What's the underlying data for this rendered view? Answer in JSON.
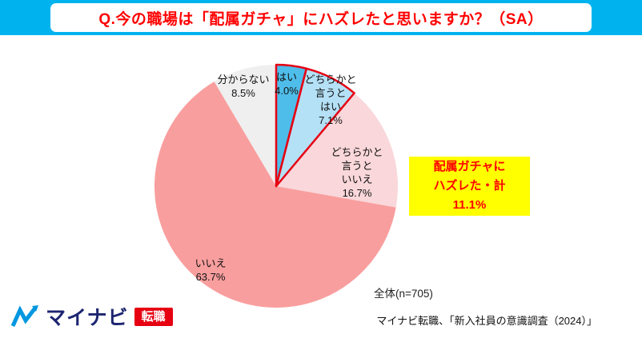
{
  "header": {
    "title": "Q.今の職場は「配属ガチャ」にハズレたと思いますか？（SA）"
  },
  "chart_data": {
    "type": "pie",
    "title": "今の職場は「配属ガチャ」にハズレたと思いますか",
    "unit": "%",
    "start_angle_deg": 0,
    "direction": "clockwise",
    "outline_color": "#e60012",
    "slices": [
      {
        "label": "はい",
        "value": 4.0,
        "color": "#4fbdea",
        "outlined": true
      },
      {
        "label": "どちらかと言うとはい",
        "value": 7.1,
        "color": "#b5e1f6",
        "outlined": true
      },
      {
        "label": "どちらかと言うといいえ",
        "value": 16.7,
        "color": "#f9d7da",
        "outlined": false
      },
      {
        "label": "いいえ",
        "value": 63.7,
        "color": "#f99e9e",
        "outlined": false
      },
      {
        "label": "分からない",
        "value": 8.5,
        "color": "#efefef",
        "outlined": false
      }
    ],
    "highlight_total": {
      "label": "配属ガチャにハズレた・計",
      "value": 11.1
    }
  },
  "labels": {
    "wakaranai": "分からない\n8.5%",
    "hai": "はい\n4.0%",
    "dochira_hai": "どちらかと\n言うと\nはい\n7.1%",
    "dochira_iie": "どちらかと\n言うと\nいいえ\n16.7%",
    "iie": "いいえ\n63.7%"
  },
  "callout": {
    "text": "配属ガチャに\nハズレた・計\n11.1%",
    "bg_color": "#ffff00",
    "text_color": "#ff0000"
  },
  "footnotes": {
    "sample": "全体(n=705)",
    "source": "マイナビ転職、「新入社員の意識調査（2024）」"
  },
  "logo": {
    "brand": "マイナビ",
    "suffix": "転職",
    "brand_color": "#1d2571",
    "suffix_bg": "#e60012"
  }
}
